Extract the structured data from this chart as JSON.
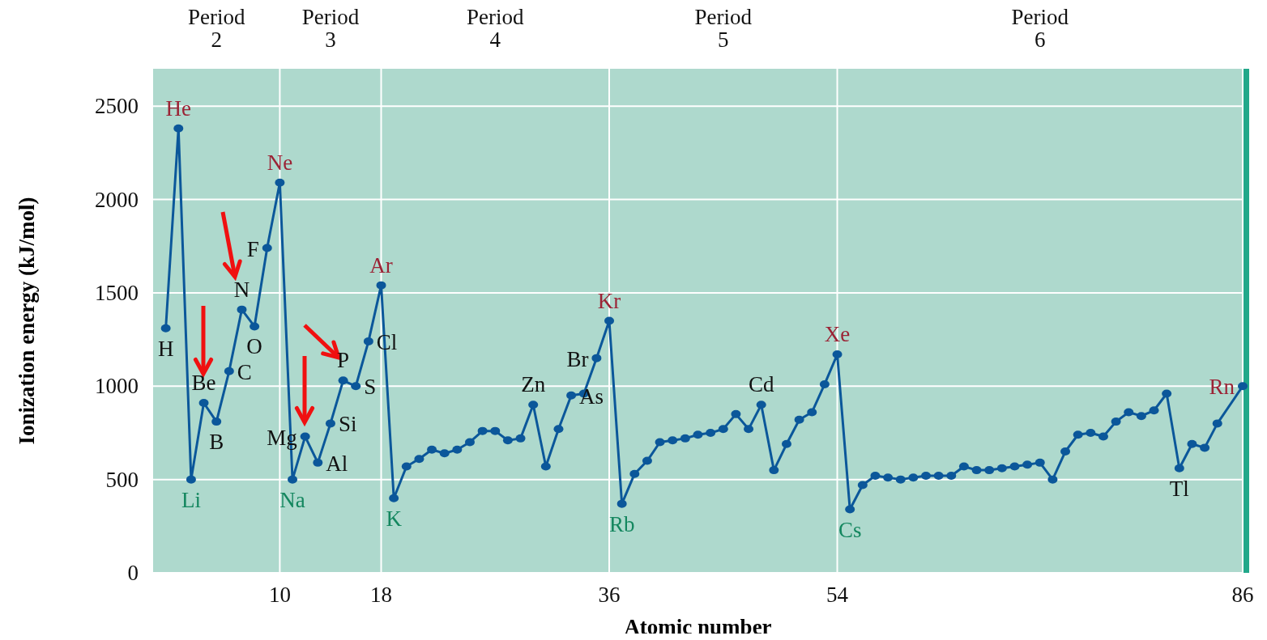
{
  "chart_data": {
    "type": "line",
    "xlabel": "Atomic number",
    "ylabel": "Ionization energy (kJ/mol)",
    "xlim": [
      0,
      86
    ],
    "ylim": [
      0,
      2700
    ],
    "xticks": [
      10,
      18,
      36,
      54,
      86
    ],
    "yticks": [
      0,
      500,
      1000,
      1500,
      2000,
      2500
    ],
    "grid": true,
    "marker": "circle",
    "line_style": "solid",
    "series": [
      {
        "color": "#0b579a",
        "x": [
          1,
          2,
          3,
          4,
          5,
          6,
          7,
          8,
          9,
          10,
          11,
          12,
          13,
          14,
          15,
          16,
          17,
          18,
          19,
          20,
          21,
          22,
          23,
          24,
          25,
          26,
          27,
          28,
          29,
          30,
          31,
          32,
          33,
          34,
          35,
          36,
          37,
          38,
          39,
          40,
          41,
          42,
          43,
          44,
          45,
          46,
          47,
          48,
          49,
          50,
          51,
          52,
          53,
          54,
          55,
          56,
          57,
          58,
          59,
          60,
          61,
          62,
          63,
          64,
          65,
          66,
          67,
          68,
          69,
          70,
          71,
          72,
          73,
          74,
          75,
          76,
          77,
          78,
          79,
          80,
          81,
          82,
          83,
          84,
          86
        ],
        "values": [
          1310,
          2380,
          500,
          910,
          810,
          1080,
          1410,
          1320,
          1740,
          2090,
          500,
          730,
          590,
          800,
          1030,
          1000,
          1240,
          1540,
          400,
          570,
          610,
          660,
          640,
          660,
          700,
          760,
          760,
          710,
          720,
          900,
          570,
          770,
          950,
          960,
          1150,
          1350,
          370,
          530,
          600,
          700,
          710,
          720,
          740,
          750,
          770,
          850,
          770,
          900,
          550,
          690,
          820,
          860,
          1010,
          1170,
          340,
          470,
          520,
          510,
          500,
          510,
          520,
          520,
          520,
          570,
          550,
          550,
          560,
          570,
          580,
          590,
          500,
          650,
          740,
          750,
          730,
          810,
          860,
          840,
          870,
          960,
          560,
          690,
          670,
          800,
          1000
        ]
      }
    ],
    "annotations": [
      "Period 2",
      "Period 3",
      "Period 4",
      "Period 5",
      "Period 6",
      {
        "text": "H",
        "x": 1,
        "y": 1310
      },
      {
        "text": "He",
        "x": 2,
        "y": 2380
      },
      {
        "text": "Li",
        "x": 3,
        "y": 500
      },
      {
        "text": "Be",
        "x": 4,
        "y": 910
      },
      {
        "text": "B",
        "x": 5,
        "y": 810
      },
      {
        "text": "C",
        "x": 6,
        "y": 1080
      },
      {
        "text": "N",
        "x": 7,
        "y": 1410
      },
      {
        "text": "O",
        "x": 8,
        "y": 1320
      },
      {
        "text": "F",
        "x": 9,
        "y": 1740
      },
      {
        "text": "Ne",
        "x": 10,
        "y": 2090
      },
      {
        "text": "Na",
        "x": 11,
        "y": 500
      },
      {
        "text": "Mg",
        "x": 12,
        "y": 730
      },
      {
        "text": "Al",
        "x": 13,
        "y": 590
      },
      {
        "text": "Si",
        "x": 14,
        "y": 800
      },
      {
        "text": "P",
        "x": 15,
        "y": 1030
      },
      {
        "text": "S",
        "x": 16,
        "y": 1000
      },
      {
        "text": "Cl",
        "x": 17,
        "y": 1240
      },
      {
        "text": "Ar",
        "x": 18,
        "y": 1540
      },
      {
        "text": "K",
        "x": 19,
        "y": 400
      },
      {
        "text": "Zn",
        "x": 30,
        "y": 900
      },
      {
        "text": "As",
        "x": 33,
        "y": 950
      },
      {
        "text": "Br",
        "x": 35,
        "y": 1150
      },
      {
        "text": "Kr",
        "x": 36,
        "y": 1350
      },
      {
        "text": "Rb",
        "x": 37,
        "y": 370
      },
      {
        "text": "Cd",
        "x": 48,
        "y": 900
      },
      {
        "text": "Xe",
        "x": 54,
        "y": 1170
      },
      {
        "text": "Cs",
        "x": 55,
        "y": 340
      },
      {
        "text": "Tl",
        "x": 81,
        "y": 560
      },
      {
        "text": "Rn",
        "x": 86,
        "y": 1000
      }
    ]
  }
}
